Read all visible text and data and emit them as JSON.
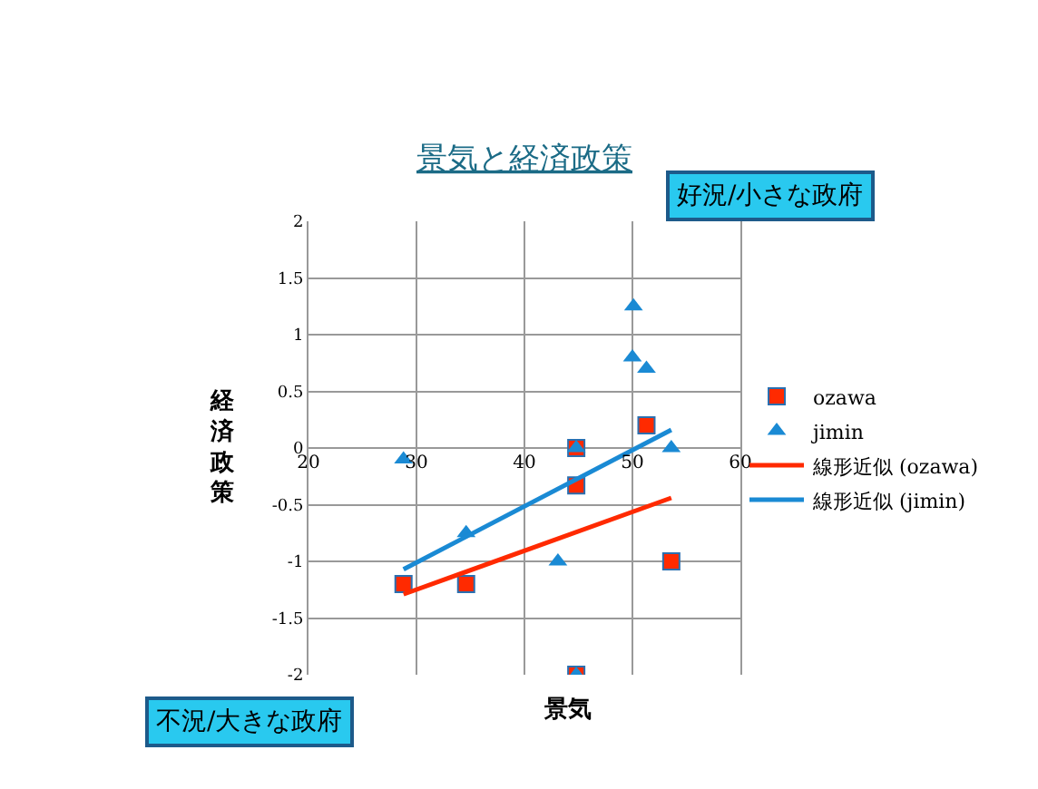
{
  "chart_data": {
    "type": "scatter",
    "title": "景気と経済政策",
    "xlabel": "景気",
    "ylabel": "経済政策",
    "annotations": [
      "好況/小さな政府",
      "不況/大きな政府"
    ],
    "xlim": [
      20,
      60
    ],
    "xticks": [
      20,
      30,
      40,
      50,
      60
    ],
    "ylim": [
      -2,
      2
    ],
    "yticks": [
      -2,
      -1.5,
      -1,
      -0.5,
      0,
      0.5,
      1,
      1.5,
      2
    ],
    "grid": true,
    "legend": "right",
    "series": [
      {
        "name": "ozawa",
        "type": "scatter",
        "marker": "square",
        "color": "#ff2a00",
        "x": [
          28.8,
          34.6,
          44.8,
          44.8,
          51.3,
          53.6,
          44.8
        ],
        "values": [
          -1.2,
          -1.2,
          0,
          -0.33,
          0.2,
          -1.0,
          -2
        ]
      },
      {
        "name": "jimin",
        "type": "scatter",
        "marker": "triangle",
        "color": "#1a8ad4",
        "x": [
          28.8,
          34.6,
          43.1,
          44.8,
          44.8,
          50.1,
          50.0,
          51.3,
          53.6
        ],
        "values": [
          -0.1,
          -0.75,
          -1.0,
          0,
          -2,
          1.25,
          0.8,
          0.7,
          0
        ]
      },
      {
        "name": "線形近似 (ozawa)",
        "type": "line",
        "color": "#ff2a00",
        "x": [
          28.8,
          53.6
        ],
        "values": [
          -1.29,
          -0.44
        ]
      },
      {
        "name": "線形近似 (jimin)",
        "type": "line",
        "color": "#1a8ad4",
        "x": [
          28.8,
          53.6
        ],
        "values": [
          -1.07,
          0.16
        ]
      }
    ]
  }
}
